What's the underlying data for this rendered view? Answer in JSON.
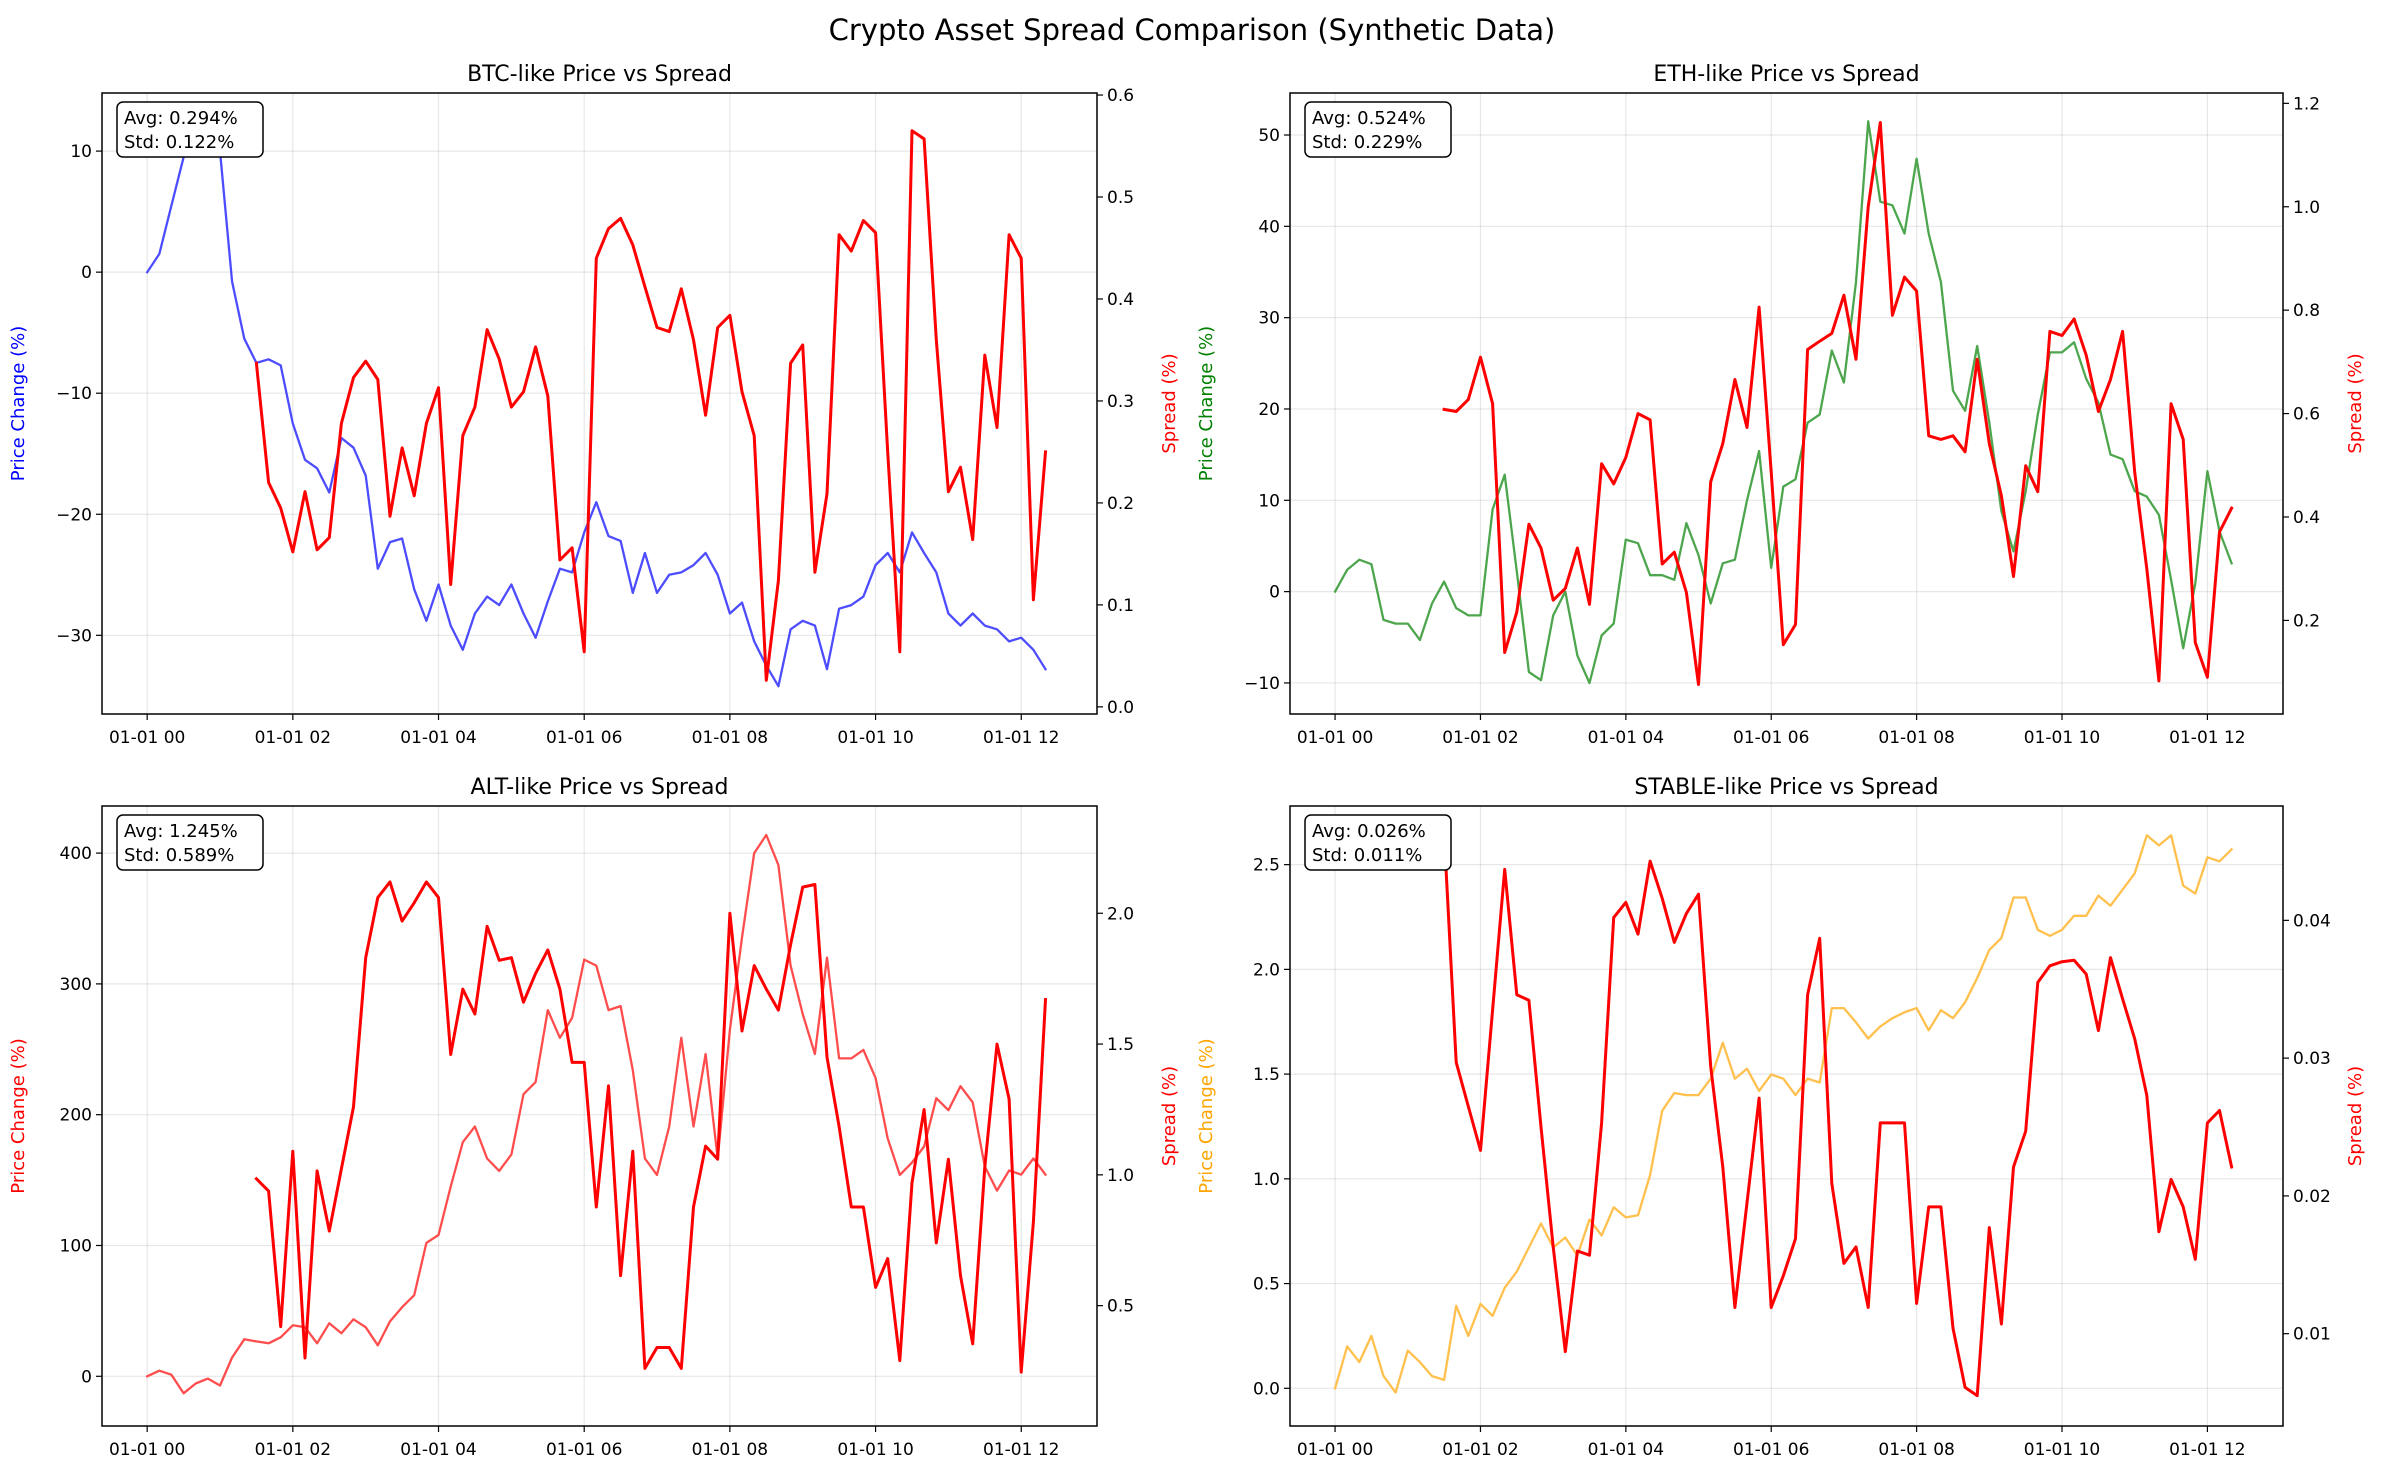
{
  "chart_data": {
    "type": "line",
    "title": "Crypto Asset Spread Comparison (Synthetic Data)",
    "grid": true,
    "xlim": [
      "01-01 00:00 −0.62h",
      "01-01 13:02"
    ],
    "xlim_hours": [
      -0.62,
      13.04
    ],
    "xticks": [
      {
        "label": "01-01 00"
      },
      {
        "label": "01-01 02"
      },
      {
        "label": "01-01 04"
      },
      {
        "label": "01-01 06"
      },
      {
        "label": "01-01 08"
      },
      {
        "label": "01-01 10"
      },
      {
        "label": "01-01 12"
      }
    ],
    "x": [
      "01-01 00:00",
      "01-01 00:10",
      "01-01 00:20",
      "01-01 00:30",
      "01-01 00:40",
      "01-01 00:50",
      "01-01 01:00",
      "01-01 01:10",
      "01-01 01:20",
      "01-01 01:30",
      "01-01 01:40",
      "01-01 01:50",
      "01-01 02:00",
      "01-01 02:10",
      "01-01 02:20",
      "01-01 02:30",
      "01-01 02:40",
      "01-01 02:50",
      "01-01 03:00",
      "01-01 03:10",
      "01-01 03:20",
      "01-01 03:30",
      "01-01 03:40",
      "01-01 03:50",
      "01-01 04:00",
      "01-01 04:10",
      "01-01 04:20",
      "01-01 04:30",
      "01-01 04:40",
      "01-01 04:50",
      "01-01 05:00",
      "01-01 05:10",
      "01-01 05:20",
      "01-01 05:30",
      "01-01 05:40",
      "01-01 05:50",
      "01-01 06:00",
      "01-01 06:10",
      "01-01 06:20",
      "01-01 06:30",
      "01-01 06:40",
      "01-01 06:50",
      "01-01 07:00",
      "01-01 07:10",
      "01-01 07:20",
      "01-01 07:30",
      "01-01 07:40",
      "01-01 07:50",
      "01-01 08:00",
      "01-01 08:10",
      "01-01 08:20",
      "01-01 08:30",
      "01-01 08:40",
      "01-01 08:50",
      "01-01 09:00",
      "01-01 09:10",
      "01-01 09:20",
      "01-01 09:30",
      "01-01 09:40",
      "01-01 09:50",
      "01-01 10:00",
      "01-01 10:10",
      "01-01 10:20",
      "01-01 10:30",
      "01-01 10:40",
      "01-01 10:50",
      "01-01 11:00",
      "01-01 11:10",
      "01-01 11:20",
      "01-01 11:30",
      "01-01 11:40",
      "01-01 11:50",
      "01-01 12:00",
      "01-01 12:10",
      "01-01 12:20"
    ],
    "panels": [
      {
        "id": "btc",
        "title": "BTC-like Price vs Spread",
        "stats": {
          "avg": "Avg: 0.294%",
          "std": "Std: 0.122%"
        },
        "price": {
          "ylabel": "Price Change (%)",
          "color": "#0000ff",
          "line_color": "#4d4dff",
          "ylim": [
            -36.5,
            14.8
          ],
          "ticks": [
            "−30",
            "−20",
            "−10",
            "0",
            "10"
          ],
          "values": [
            0,
            1.5,
            5.5,
            9.5,
            12.3,
            11,
            10,
            -0.8,
            -5.5,
            -7.5,
            -7.2,
            -7.7,
            -12.5,
            -15.5,
            -16.2,
            -18.2,
            -13.7,
            -14.5,
            -16.8,
            -24.5,
            -22.3,
            -22,
            -26.2,
            -28.8,
            -25.8,
            -29.2,
            -31.2,
            -28.2,
            -26.8,
            -27.5,
            -25.8,
            -28.2,
            -30.2,
            -27.2,
            -24.5,
            -24.8,
            -21.5,
            -19,
            -21.8,
            -22.2,
            -26.5,
            -23.2,
            -26.5,
            -25,
            -24.8,
            -24.2,
            -23.2,
            -25,
            -28.2,
            -27.3,
            -30.5,
            -32.5,
            -34.2,
            -29.5,
            -28.8,
            -29.2,
            -32.8,
            -27.8,
            -27.5,
            -26.8,
            -24.2,
            -23.2,
            -24.8,
            -21.5,
            -23.2,
            -24.8,
            -28.2,
            -29.2,
            -28.2,
            -29.2,
            -29.5,
            -30.5,
            -30.2,
            -31.2,
            -32.8
          ]
        },
        "spread": {
          "ylabel": "Spread (%)",
          "color": "#ff0000",
          "ylim": [
            -0.007,
            0.602
          ],
          "ticks": [
            "0.0",
            "0.1",
            "0.2",
            "0.3",
            "0.4",
            "0.5",
            "0.6"
          ],
          "values": [
            null,
            null,
            null,
            null,
            null,
            null,
            null,
            null,
            null,
            0.337,
            0.22,
            0.195,
            0.152,
            0.211,
            0.154,
            0.166,
            0.278,
            0.323,
            0.339,
            0.321,
            0.187,
            0.254,
            0.207,
            0.278,
            0.313,
            0.12,
            0.266,
            0.294,
            0.37,
            0.341,
            0.294,
            0.309,
            0.353,
            0.305,
            0.144,
            0.156,
            0.054,
            0.44,
            0.469,
            0.479,
            0.453,
            0.412,
            0.372,
            0.368,
            0.41,
            0.36,
            0.286,
            0.372,
            0.384,
            0.309,
            0.266,
            0.026,
            0.124,
            0.337,
            0.355,
            0.132,
            0.209,
            0.463,
            0.447,
            0.477,
            0.465,
            0.25,
            0.054,
            0.565,
            0.557,
            0.36,
            0.211,
            0.235,
            0.164,
            0.345,
            0.274,
            0.463,
            0.44,
            0.105,
            0.25
          ]
        }
      },
      {
        "id": "eth",
        "title": "ETH-like Price vs Spread",
        "stats": {
          "avg": "Avg: 0.524%",
          "std": "Std: 0.229%"
        },
        "price": {
          "ylabel": "Price Change (%)",
          "color": "#008000",
          "line_color": "#4da64d",
          "ylim": [
            -13.4,
            54.6
          ],
          "ticks": [
            "−10",
            "0",
            "10",
            "20",
            "30",
            "40",
            "50"
          ],
          "values": [
            0,
            2.4,
            3.5,
            3,
            -3.1,
            -3.5,
            -3.5,
            -5.3,
            -1.3,
            1.1,
            -1.8,
            -2.6,
            -2.6,
            9,
            12.8,
            2.2,
            -8.8,
            -9.7,
            -2.6,
            0,
            -7,
            -10,
            -4.8,
            -3.5,
            5.7,
            5.3,
            1.8,
            1.8,
            1.3,
            7.5,
            4,
            -1.3,
            3.1,
            3.5,
            10,
            15.4,
            2.6,
            11.5,
            12.3,
            18.5,
            19.4,
            26.4,
            22.9,
            33.9,
            51.5,
            42.7,
            42.3,
            39.2,
            47.4,
            39.2,
            33.9,
            22,
            19.8,
            26.9,
            18.5,
            8.8,
            4.4,
            11,
            19.4,
            26.2,
            26.2,
            27.3,
            23.3,
            20.7,
            15,
            14.5,
            11,
            10.4,
            8.4,
            1.3,
            -6.2,
            0.9,
            13.2,
            6.6,
            3.1
          ]
        },
        "spread": {
          "ylabel": "Spread (%)",
          "color": "#ff0000",
          "ylim": [
            0.019,
            1.22
          ],
          "ticks": [
            "0.2",
            "0.4",
            "0.6",
            "0.8",
            "1.0",
            "1.2"
          ],
          "values": [
            null,
            null,
            null,
            null,
            null,
            null,
            null,
            null,
            null,
            0.608,
            0.604,
            0.627,
            0.709,
            0.619,
            0.138,
            0.216,
            0.386,
            0.34,
            0.239,
            0.262,
            0.34,
            0.231,
            0.503,
            0.464,
            0.515,
            0.6,
            0.588,
            0.309,
            0.332,
            0.254,
            0.076,
            0.468,
            0.542,
            0.666,
            0.573,
            0.806,
            0.487,
            0.153,
            0.192,
            0.724,
            0.74,
            0.755,
            0.829,
            0.705,
            1.0,
            1.163,
            0.79,
            0.864,
            0.837,
            0.557,
            0.55,
            0.557,
            0.526,
            0.705,
            0.542,
            0.441,
            0.285,
            0.499,
            0.449,
            0.759,
            0.751,
            0.783,
            0.713,
            0.604,
            0.666,
            0.759,
            0.487,
            0.3,
            0.083,
            0.619,
            0.55,
            0.157,
            0.09,
            0.371,
            0.417
          ]
        }
      },
      {
        "id": "alt",
        "title": "ALT-like Price vs Spread",
        "stats": {
          "avg": "Avg: 1.245%",
          "std": "Std: 0.589%"
        },
        "price": {
          "ylabel": "Price Change (%)",
          "color": "#ff0000",
          "line_color": "#ff4d4d",
          "ylim": [
            -38,
            436
          ],
          "ticks": [
            "0",
            "100",
            "200",
            "300",
            "400"
          ],
          "values": [
            0,
            4.3,
            1.2,
            -13,
            -5.5,
            -1.8,
            -7,
            14.4,
            28.3,
            26.7,
            25.2,
            29.8,
            39,
            37.5,
            25.2,
            40.6,
            32.9,
            43.6,
            37.5,
            23.7,
            42,
            52.8,
            62,
            102,
            108,
            145,
            179,
            191,
            166.5,
            157,
            169.6,
            215.7,
            224.9,
            280,
            258.8,
            274,
            318.6,
            314,
            280,
            283,
            234,
            166.5,
            154,
            191,
            258.8,
            191,
            246.4,
            166.5,
            264.8,
            335.5,
            400,
            413.8,
            390.8,
            314,
            277,
            246.4,
            320,
            243,
            243,
            249.5,
            228,
            181.9,
            154,
            163.4,
            175.7,
            212.6,
            203.4,
            221.8,
            209.5,
            160.4,
            142,
            157.3,
            154.2,
            166.5,
            154.2
          ]
        },
        "spread": {
          "ylabel": "Spread (%)",
          "color": "#ff0000",
          "ylim": [
            0.04,
            2.41
          ],
          "ticks": [
            "0.5",
            "1.0",
            "1.5",
            "2.0"
          ],
          "values": [
            null,
            null,
            null,
            null,
            null,
            null,
            null,
            null,
            null,
            0.985,
            0.938,
            0.42,
            1.09,
            0.3,
            1.015,
            0.785,
            1.023,
            1.26,
            1.83,
            2.06,
            2.12,
            1.97,
            2.04,
            2.12,
            2.06,
            1.46,
            1.71,
            1.615,
            1.95,
            1.82,
            1.83,
            1.66,
            1.77,
            1.86,
            1.71,
            1.43,
            1.43,
            0.877,
            1.34,
            0.615,
            1.09,
            0.26,
            0.34,
            0.34,
            0.26,
            0.877,
            1.11,
            1.06,
            2.0,
            1.55,
            1.8,
            1.71,
            1.63,
            1.88,
            2.1,
            2.11,
            1.45,
            1.185,
            0.877,
            0.877,
            0.57,
            0.68,
            0.29,
            0.97,
            1.25,
            0.74,
            1.06,
            0.615,
            0.354,
            1.03,
            1.5,
            1.29,
            0.246,
            0.82,
            1.67
          ]
        }
      },
      {
        "id": "stable",
        "title": "STABLE-like Price vs Spread",
        "stats": {
          "avg": "Avg: 0.026%",
          "std": "Std: 0.011%"
        },
        "price": {
          "ylabel": "Price Change (%)",
          "color": "#ffa500",
          "line_color": "#ffc04d",
          "ylim": [
            -0.18,
            2.78
          ],
          "ticks": [
            "0.0",
            "0.5",
            "1.0",
            "1.5",
            "2.0",
            "2.5"
          ],
          "values": [
            0,
            0.2,
            0.125,
            0.25,
            0.058,
            -0.02,
            0.18,
            0.125,
            0.058,
            0.04,
            0.394,
            0.25,
            0.403,
            0.346,
            0.48,
            0.557,
            0.672,
            0.787,
            0.672,
            0.72,
            0.634,
            0.806,
            0.73,
            0.864,
            0.816,
            0.826,
            1.018,
            1.325,
            1.41,
            1.4,
            1.4,
            1.478,
            1.65,
            1.478,
            1.526,
            1.42,
            1.498,
            1.478,
            1.4,
            1.478,
            1.46,
            1.815,
            1.815,
            1.747,
            1.67,
            1.728,
            1.767,
            1.795,
            1.815,
            1.709,
            1.805,
            1.767,
            1.843,
            1.959,
            2.093,
            2.15,
            2.343,
            2.343,
            2.189,
            2.16,
            2.189,
            2.256,
            2.256,
            2.352,
            2.304,
            2.381,
            2.458,
            2.64,
            2.592,
            2.64,
            2.4,
            2.362,
            2.535,
            2.516,
            2.573
          ]
        },
        "spread": {
          "ylabel": "Spread (%)",
          "color": "#ff0000",
          "ylim": [
            0.0033,
            0.0483
          ],
          "ticks": [
            "0.01",
            "0.02",
            "0.03",
            "0.04"
          ],
          "values": [
            null,
            null,
            null,
            null,
            null,
            null,
            null,
            null,
            null,
            0.0464,
            0.0297,
            0.0265,
            0.0233,
            0.0335,
            0.0437,
            0.0346,
            0.0342,
            0.025,
            0.0163,
            0.0087,
            0.016,
            0.0157,
            0.0253,
            0.0402,
            0.0413,
            0.039,
            0.0443,
            0.0416,
            0.0384,
            0.0405,
            0.0419,
            0.0294,
            0.0221,
            0.0119,
            0.0195,
            0.0271,
            0.0119,
            0.0142,
            0.0169,
            0.0346,
            0.0387,
            0.0209,
            0.0151,
            0.0163,
            0.0119,
            0.0253,
            0.0253,
            0.0253,
            0.0122,
            0.0192,
            0.0192,
            0.0104,
            0.0061,
            0.0055,
            0.0177,
            0.0107,
            0.0221,
            0.0247,
            0.0355,
            0.0367,
            0.037,
            0.0371,
            0.0361,
            0.032,
            0.0373,
            0.0343,
            0.0314,
            0.0273,
            0.0174,
            0.0212,
            0.0192,
            0.0154,
            0.0253,
            0.0262,
            0.0221
          ]
        }
      }
    ]
  }
}
